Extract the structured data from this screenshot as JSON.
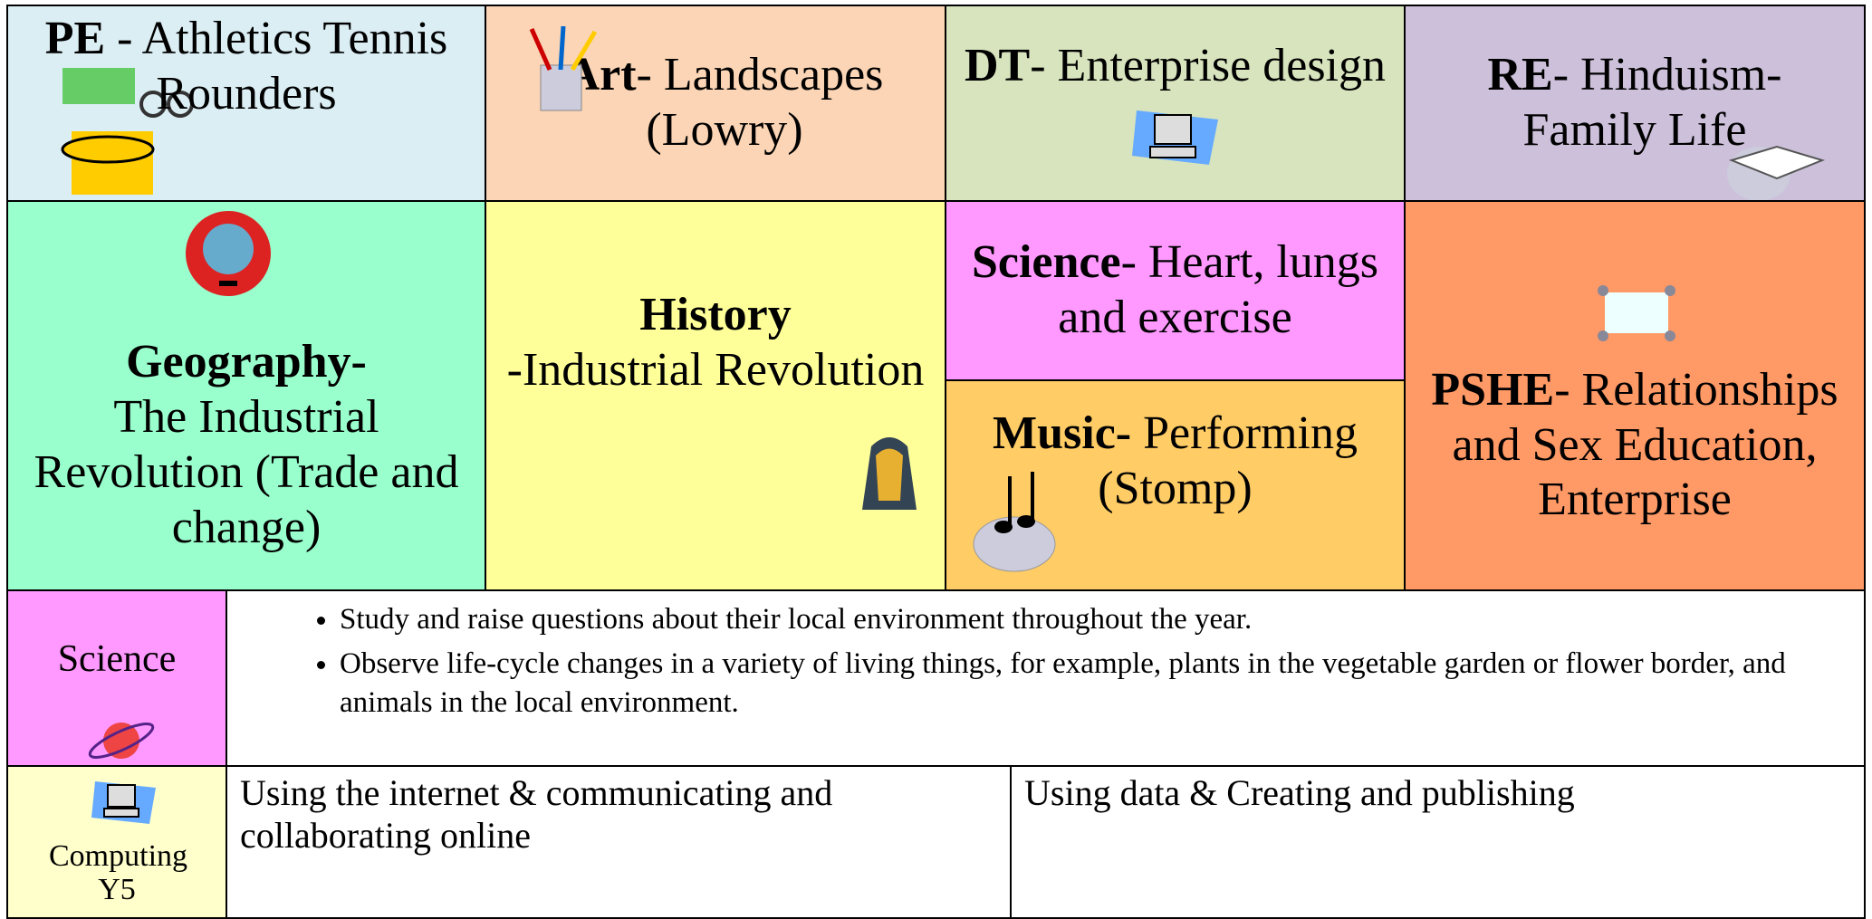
{
  "topics": [
    {
      "subject": "PE",
      "topic": "- Athletics Tennis Rounders"
    },
    {
      "subject": "Art",
      "topic": "- Landscapes (Lowry)"
    },
    {
      "subject": "DT",
      "topic": "- Enterprise design"
    },
    {
      "subject": "RE",
      "topic": "- Hinduism- Family Life"
    },
    {
      "subject": "Geography-",
      "topic": "The Industrial Revolution (Trade and change)"
    },
    {
      "subject": "History",
      "topic": "-Industrial Revolution"
    },
    {
      "subject": "Science",
      "topic": "- Heart, lungs and exercise"
    },
    {
      "subject": "Music-",
      "topic": "Performing (Stomp)"
    },
    {
      "subject": "PSHE",
      "topic": "- Relationships and Sex Education, Enterprise"
    }
  ],
  "science_row": {
    "label": "Science",
    "bullets": [
      "Study and raise questions about their local environment throughout the year.",
      "Observe life-cycle changes in a variety of living things, for example, plants in the vegetable garden or flower border, and animals in the local environment."
    ]
  },
  "computing_row": {
    "label": "Computing Y5",
    "cells": [
      "Using the internet & communicating and collaborating online",
      "Using data & Creating and publishing"
    ]
  }
}
